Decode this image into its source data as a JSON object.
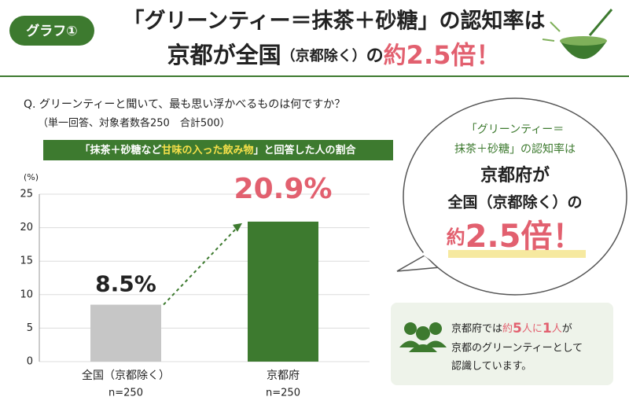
{
  "header": {
    "badge": "グラフ①",
    "title_line1": "「グリーンティー＝抹茶＋砂糖」の認知率は",
    "title_line2": [
      "京都が全国",
      "（京都除く）",
      "の",
      "約",
      "2.5倍！"
    ]
  },
  "question": {
    "text": "Q. グリーンティーと聞いて、最も思い浮かべるものは何ですか？",
    "note": "（単一回答、対象者数各250　合計500）",
    "banner": [
      "「抹茶＋砂糖など",
      "甘味の入った飲み物",
      "」と回答した人の割合"
    ]
  },
  "chart_data": {
    "type": "bar",
    "y_label": "(%)",
    "categories": [
      "全国（京都除く）",
      "京都府"
    ],
    "category_notes": [
      "n=250",
      "n=250"
    ],
    "values": [
      8.5,
      20.9
    ],
    "value_labels": [
      "8.5%",
      "20.9%"
    ],
    "colors": [
      "#c6c6c6",
      "#3d7a2f"
    ],
    "value_label_colors": [
      "#222222",
      "#e2606f"
    ],
    "ylim": [
      0,
      25
    ],
    "yticks": [
      0,
      5,
      10,
      15,
      20,
      25
    ],
    "grid": true
  },
  "callout": {
    "lines": [
      "「グリーンティー＝",
      "抹茶＋砂糖」の認知率は",
      "京都府が",
      "全国（京都除く）の"
    ],
    "emphasis": [
      "約",
      "2.5倍！"
    ]
  },
  "note": {
    "line1": [
      "京都府では",
      "約",
      "5",
      "人に",
      "1",
      "人",
      "が"
    ],
    "line2": "京都のグリーンティーとして",
    "line3": "認識しています。"
  }
}
